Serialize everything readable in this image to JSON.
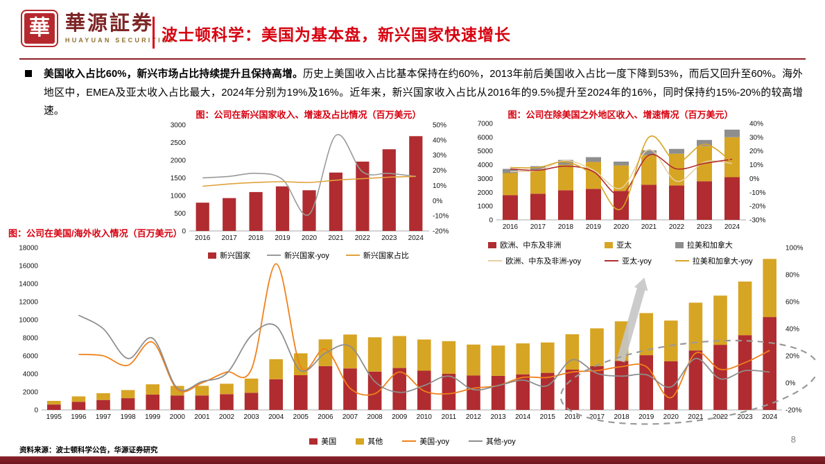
{
  "header": {
    "logo_char": "華",
    "brand": "華源証券",
    "brand_sub": "HUAYUAN SECURITIES",
    "title": "波士顿科学：美国为基本盘，新兴国家快速增长"
  },
  "body": {
    "bullet_bold": "美国收入占比60%，新兴市场占比持续提升且保持高增。",
    "bullet_text": "历史上美国收入占比基本保持在约60%，2013年前后美国收入占比一度下降到53%，而后又回升至60%。海外地区中，EMEA及亚太收入占比最大，2024年分别为19%及16%。近年来，新兴国家收入占比从2016年的9.5%提升至2024年的16%，同时保持约15%-20%的较高增速。"
  },
  "footer": {
    "source": "资料来源：波士顿科学公告，华源证券研究",
    "page": "8"
  },
  "colors": {
    "accent_red": "#d7000f",
    "maroon_rule": "#8c1f26",
    "bar_red": "#b02c30",
    "bar_gold": "#d7a524",
    "bar_gray": "#8e8e8e",
    "line_orange": "#f08019",
    "footer_bar": "#7a1a22"
  },
  "chart_data": [
    {
      "type": "bar",
      "title": "图：公司在新兴国家收入、增速及占比情况（百万美元）",
      "categories": [
        "2016",
        "2017",
        "2018",
        "2019",
        "2020",
        "2021",
        "2022",
        "2023",
        "2024"
      ],
      "bar_series": [
        {
          "name": "新兴国家",
          "color": "#b02c30",
          "values": [
            800,
            930,
            1100,
            1260,
            1150,
            1650,
            1960,
            2310,
            2680
          ]
        }
      ],
      "line_series": [
        {
          "name": "新兴国家-yoy",
          "color": "#9a9a9a",
          "values": [
            15,
            16,
            18,
            14,
            -9,
            43,
            19,
            18,
            16
          ]
        },
        {
          "name": "新兴国家占比",
          "color": "#dfa23c",
          "values": [
            9.5,
            11,
            12,
            12.5,
            12,
            13.5,
            14.5,
            15.5,
            16
          ]
        }
      ],
      "left_axis": {
        "min": 0,
        "max": 3000,
        "step": 500
      },
      "right_axis": {
        "min": -20,
        "max": 50,
        "step": 10
      }
    },
    {
      "type": "stacked-bar",
      "title": "图：公司在除美国之外地区收入、增速情况（百万美元）",
      "categories": [
        "2016",
        "2017",
        "2018",
        "2019",
        "2020",
        "2021",
        "2022",
        "2023",
        "2024"
      ],
      "bar_series": [
        {
          "name": "欧洲、中东及非洲",
          "color": "#b02c30",
          "values": [
            1800,
            1900,
            2150,
            2250,
            2100,
            2550,
            2500,
            2800,
            3100
          ]
        },
        {
          "name": "亚太",
          "color": "#d7a524",
          "values": [
            1600,
            1700,
            1850,
            1950,
            1850,
            2150,
            2300,
            2550,
            2900
          ]
        },
        {
          "name": "拉美和加拿大",
          "color": "#8e8e8e",
          "values": [
            300,
            300,
            350,
            350,
            280,
            350,
            350,
            450,
            550
          ]
        }
      ],
      "line_series": [
        {
          "name": "欧洲、中东及非洲-yoy",
          "color": "#e7d0a0",
          "values": [
            5,
            6,
            13,
            6,
            -7,
            21,
            -2,
            12,
            11
          ]
        },
        {
          "name": "亚太-yoy",
          "color": "#b02c30",
          "values": [
            7,
            6,
            9,
            5,
            -12,
            17,
            7,
            11,
            14
          ]
        },
        {
          "name": "拉美和加拿大-yoy",
          "color": "#d7a524",
          "values": [
            8,
            8,
            12,
            2,
            -22,
            30,
            12,
            25,
            12
          ]
        }
      ],
      "left_axis": {
        "min": 0,
        "max": 7000,
        "step": 1000
      },
      "right_axis": {
        "min": -30,
        "max": 40,
        "step": 10
      }
    },
    {
      "type": "stacked-bar",
      "title": "图：公司在美国/海外收入情况（百万美元）",
      "categories": [
        "1995",
        "1996",
        "1997",
        "1998",
        "1999",
        "2000",
        "2001",
        "2002",
        "2003",
        "2004",
        "2005",
        "2006",
        "2007",
        "2008",
        "2009",
        "2010",
        "2011",
        "2012",
        "2013",
        "2014",
        "2015",
        "2016",
        "2017",
        "2018",
        "2019",
        "2020",
        "2021",
        "2022",
        "2023",
        "2024"
      ],
      "bar_series": [
        {
          "name": "美国",
          "color": "#b02c30",
          "values": [
            600,
            900,
            1100,
            1300,
            1700,
            1600,
            1600,
            1750,
            1900,
            3400,
            3850,
            4850,
            4600,
            4250,
            4650,
            4350,
            4000,
            3820,
            3780,
            3950,
            4110,
            4460,
            4850,
            5430,
            6070,
            5400,
            6590,
            7220,
            8290,
            10300
          ]
        },
        {
          "name": "其他",
          "color": "#d7a524",
          "values": [
            400,
            600,
            750,
            900,
            1140,
            1060,
            1070,
            1150,
            1580,
            2220,
            2430,
            2970,
            3760,
            3800,
            3540,
            3460,
            3620,
            3430,
            3360,
            3430,
            3370,
            3930,
            4200,
            4390,
            4670,
            4510,
            5300,
            5460,
            5950,
            6450
          ]
        }
      ],
      "line_series": [
        {
          "name": "美国-yoy",
          "color": "#f08019",
          "values": [
            null,
            21,
            20,
            13,
            30,
            -5,
            0,
            8,
            10,
            88,
            12,
            25,
            -4,
            -8,
            8,
            -6,
            -8,
            -4,
            -2,
            4,
            4,
            8,
            9,
            12,
            12,
            -11,
            22,
            10,
            15,
            24
          ]
        },
        {
          "name": "其他-yoy",
          "color": "#8e8e8e",
          "values": [
            null,
            50,
            40,
            18,
            33,
            -4,
            1,
            7,
            35,
            42,
            9,
            22,
            27,
            1,
            -7,
            -2,
            5,
            -5,
            -2,
            2,
            -2,
            17,
            7,
            5,
            6,
            -3,
            18,
            3,
            9,
            8
          ]
        }
      ],
      "left_axis": {
        "min": 0,
        "max": 18000,
        "step": 2000
      },
      "right_axis": {
        "min": -20,
        "max": 100,
        "step": 20
      },
      "annotations": {
        "arrow": {
          "x1": 0.782,
          "y1": 0.7,
          "x2": 0.814,
          "y2": 0.185,
          "color": "#c6c6c6"
        },
        "ellipse": {
          "cx": 0.875,
          "cy": 0.83,
          "rx": 0.175,
          "ry": 0.24,
          "rot": -7,
          "color": "#999999"
        }
      }
    }
  ]
}
